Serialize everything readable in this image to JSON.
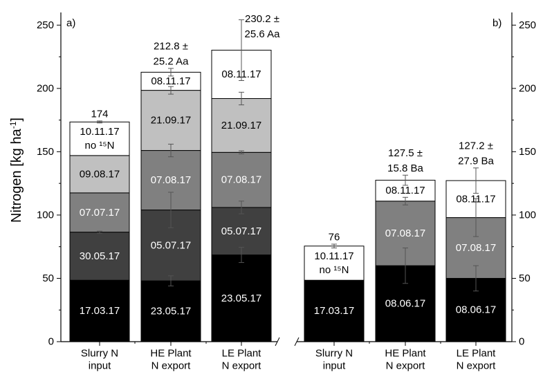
{
  "chart_data": {
    "type": "bar",
    "stacked": true,
    "ylabel": "Nitrogen [kg ha",
    "ylabel_sup": "-1",
    "ylim": [
      0,
      260
    ],
    "yticks": [
      0,
      50,
      100,
      150,
      200,
      250
    ],
    "tick_labels": [
      "0",
      "50",
      "100",
      "150",
      "200",
      "250"
    ],
    "panels": [
      {
        "label": "a)",
        "bars": [
          {
            "category_lines": [
              "Slurry N",
              "input"
            ],
            "total_label_lines": [
              "174"
            ],
            "segments": [
              {
                "lines": [
                  "17.03.17"
                ],
                "y0": 0,
                "y1": 48.5,
                "color": "#000000",
                "text_color": "#ffffff"
              },
              {
                "lines": [
                  "30.05.17"
                ],
                "y0": 48.5,
                "y1": 86.5,
                "color": "#404040",
                "text_color": "#ffffff"
              },
              {
                "lines": [
                  "07.07.17"
                ],
                "y0": 86.5,
                "y1": 117.5,
                "color": "#808080",
                "text_color": "#ffffff"
              },
              {
                "lines": [
                  "09.08.17"
                ],
                "y0": 117.5,
                "y1": 147,
                "color": "#c0c0c0",
                "text_color": "#000000"
              },
              {
                "lines": [
                  "10.11.17",
                  "no ¹⁵N"
                ],
                "y0": 147,
                "y1": 173.5,
                "color": "#ffffff",
                "text_color": "#000000"
              }
            ],
            "error_bars": [
              {
                "y": 86.5,
                "err": 0.8
              },
              {
                "y": 173.5,
                "err": 0.8
              }
            ]
          },
          {
            "category_lines": [
              "HE Plant",
              "N export"
            ],
            "total_label_lines": [
              "212.8 ±",
              "25.2 Aa"
            ],
            "segments": [
              {
                "lines": [
                  "23.05.17"
                ],
                "y0": 0,
                "y1": 48,
                "color": "#000000",
                "text_color": "#ffffff"
              },
              {
                "lines": [
                  "05.07.17"
                ],
                "y0": 48,
                "y1": 104,
                "color": "#404040",
                "text_color": "#ffffff"
              },
              {
                "lines": [
                  "07.08.17"
                ],
                "y0": 104,
                "y1": 151,
                "color": "#808080",
                "text_color": "#ffffff"
              },
              {
                "lines": [
                  "21.09.17"
                ],
                "y0": 151,
                "y1": 198.5,
                "color": "#c0c0c0",
                "text_color": "#000000"
              },
              {
                "lines": [
                  "08.11.17"
                ],
                "y0": 198.5,
                "y1": 212.8,
                "color": "#ffffff",
                "text_color": "#000000"
              }
            ],
            "error_bars": [
              {
                "y": 48,
                "err": 4
              },
              {
                "y": 104,
                "err": 14
              },
              {
                "y": 151,
                "err": 5
              },
              {
                "y": 198.5,
                "err": 3
              },
              {
                "y": 212.8,
                "err": 3
              }
            ]
          },
          {
            "category_lines": [
              "LE Plant",
              "N export"
            ],
            "total_label_lines": [
              "230.2 ±",
              "25.6 Aa"
            ],
            "segments": [
              {
                "lines": [
                  "23.05.17"
                ],
                "y0": 0,
                "y1": 68.5,
                "color": "#000000",
                "text_color": "#ffffff"
              },
              {
                "lines": [
                  "05.07.17"
                ],
                "y0": 68.5,
                "y1": 106,
                "color": "#404040",
                "text_color": "#ffffff"
              },
              {
                "lines": [
                  "07.08.17"
                ],
                "y0": 106,
                "y1": 149.5,
                "color": "#808080",
                "text_color": "#ffffff"
              },
              {
                "lines": [
                  "21.09.17"
                ],
                "y0": 149.5,
                "y1": 192,
                "color": "#c0c0c0",
                "text_color": "#000000"
              },
              {
                "lines": [
                  "08.11.17"
                ],
                "y0": 192,
                "y1": 230.2,
                "color": "#ffffff",
                "text_color": "#000000"
              }
            ],
            "error_bars": [
              {
                "y": 68.5,
                "err": 6
              },
              {
                "y": 106,
                "err": 5
              },
              {
                "y": 149.5,
                "err": 1.2
              },
              {
                "y": 192,
                "err": 5
              },
              {
                "y": 230.2,
                "err": 24
              }
            ]
          }
        ]
      },
      {
        "label": "b)",
        "bars": [
          {
            "category_lines": [
              "Slurry N",
              "input"
            ],
            "total_label_lines": [
              "76"
            ],
            "segments": [
              {
                "lines": [
                  "17.03.17"
                ],
                "y0": 0,
                "y1": 48.5,
                "color": "#000000",
                "text_color": "#ffffff"
              },
              {
                "lines": [
                  "10.11.17",
                  "no ¹⁵N"
                ],
                "y0": 48.5,
                "y1": 75.5,
                "color": "#ffffff",
                "text_color": "#000000"
              }
            ],
            "error_bars": [
              {
                "y": 75.5,
                "err": 1.5
              }
            ]
          },
          {
            "category_lines": [
              "HE Plant",
              "N export"
            ],
            "total_label_lines": [
              "127.5 ±",
              "15.8 Ba"
            ],
            "segments": [
              {
                "lines": [
                  "08.06.17"
                ],
                "y0": 0,
                "y1": 60,
                "color": "#000000",
                "text_color": "#ffffff"
              },
              {
                "lines": [
                  "07.08.17"
                ],
                "y0": 60,
                "y1": 111,
                "color": "#808080",
                "text_color": "#ffffff"
              },
              {
                "lines": [
                  "08.11.17"
                ],
                "y0": 111,
                "y1": 127.5,
                "color": "#ffffff",
                "text_color": "#000000"
              }
            ],
            "error_bars": [
              {
                "y": 60,
                "err": 14
              },
              {
                "y": 111,
                "err": 3
              },
              {
                "y": 127.5,
                "err": 4
              }
            ]
          },
          {
            "category_lines": [
              "LE Plant",
              "N export"
            ],
            "total_label_lines": [
              "127.2 ±",
              "27.9 Ba"
            ],
            "segments": [
              {
                "lines": [
                  "08.06.17"
                ],
                "y0": 0,
                "y1": 50,
                "color": "#000000",
                "text_color": "#ffffff"
              },
              {
                "lines": [
                  "07.08.17"
                ],
                "y0": 50,
                "y1": 98,
                "color": "#808080",
                "text_color": "#ffffff"
              },
              {
                "lines": [
                  "08.11.17"
                ],
                "y0": 98,
                "y1": 127.2,
                "color": "#ffffff",
                "text_color": "#000000"
              }
            ],
            "error_bars": [
              {
                "y": 50,
                "err": 10
              },
              {
                "y": 98,
                "err": 15
              },
              {
                "y": 127.2,
                "err": 10
              }
            ]
          }
        ]
      }
    ]
  }
}
